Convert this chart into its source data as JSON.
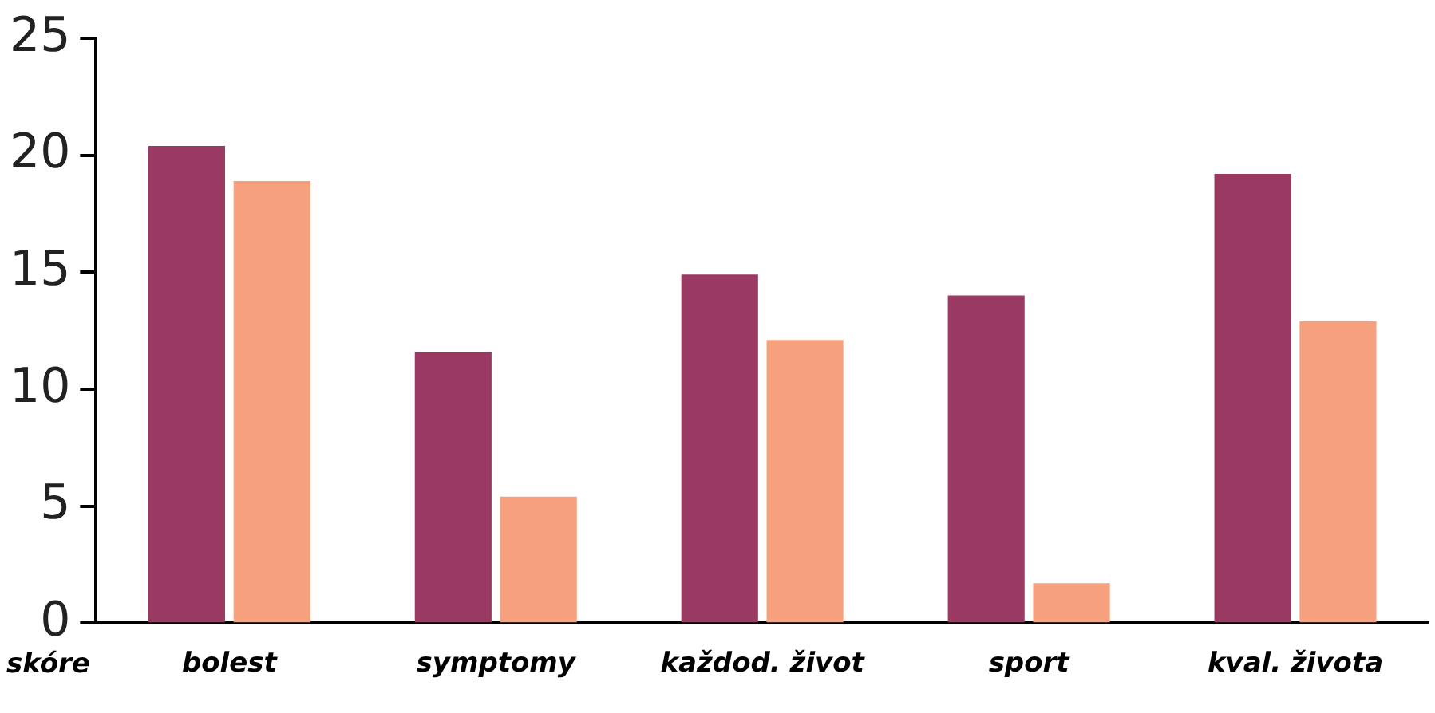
{
  "chart_data": {
    "type": "bar",
    "xlabel": "skóre",
    "categories": [
      "bolest",
      "symptomy",
      "každod. život",
      "sport",
      "kval. života"
    ],
    "series": [
      {
        "color": "#9a3a62",
        "values": [
          20.4,
          11.6,
          14.9,
          14.0,
          19.2
        ]
      },
      {
        "color": "#f6a07e",
        "values": [
          18.9,
          5.4,
          12.1,
          1.7,
          12.9
        ]
      }
    ],
    "ylim": [
      0,
      25
    ],
    "yticks": [
      0,
      5,
      10,
      15,
      20,
      25
    ],
    "grid": false,
    "legend": false
  }
}
